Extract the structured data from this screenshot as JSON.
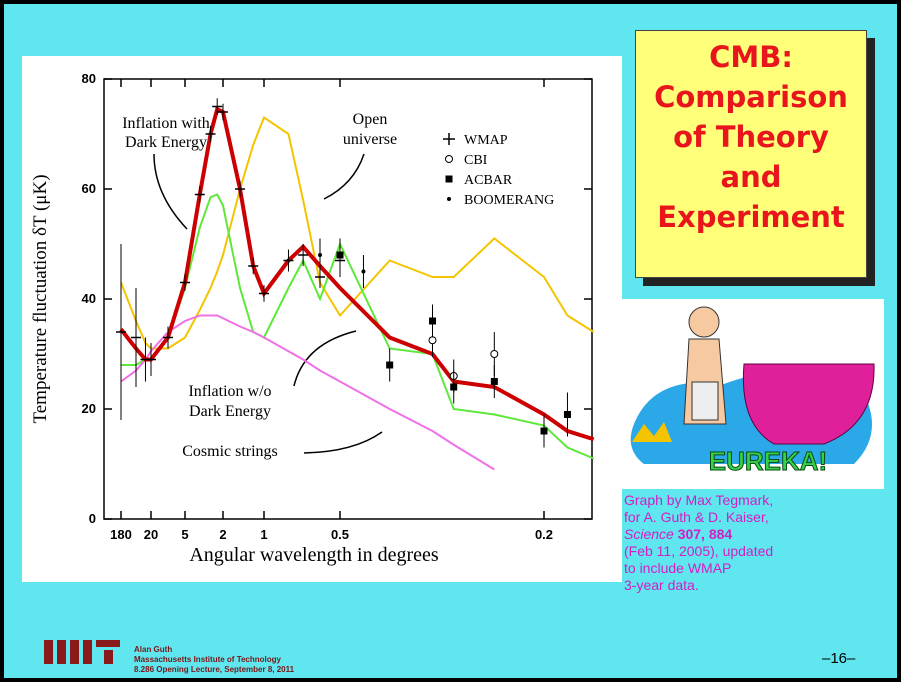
{
  "slide_title": [
    "CMB:",
    "Comparison",
    "of Theory",
    "and",
    "Experiment"
  ],
  "image": {
    "label": "EUREKA!"
  },
  "caption": {
    "line1": "Graph by Max Tegmark,",
    "line2": "for A. Guth & D. Kaiser,",
    "journal": "Science",
    "volume": "307, 884",
    "line4": "(Feb 11, 2005), updated",
    "line5": "to include WMAP",
    "line6": "3-year data."
  },
  "footer": {
    "name": "Alan Guth",
    "institution": "Massachusetts Institute of Technology",
    "lecture": "8.286 Opening Lecture, September 8, 2011",
    "page": "–16–"
  },
  "chart_data": {
    "type": "line",
    "x_label": "Angular wavelength in degrees",
    "y_label": "Temperature fluctuation δT (μK)",
    "x": [
      180,
      60,
      30,
      20,
      10,
      5,
      3.5,
      2.7,
      2.3,
      2,
      1.5,
      1.2,
      1,
      0.8,
      0.7,
      0.6,
      0.5,
      0.4,
      0.33,
      0.3,
      0.25,
      0.2,
      0.18,
      0.16
    ],
    "series": [
      {
        "name": "Open universe",
        "color": "#f5c400",
        "values": [
          43,
          36,
          32,
          31,
          31,
          33,
          38,
          42,
          45,
          48,
          60,
          68,
          73,
          70,
          58,
          43,
          37,
          47,
          44,
          44,
          51,
          44,
          37,
          34
        ]
      },
      {
        "name": "Inflation w/o Dark Energy",
        "color": "#5ee83a",
        "values": [
          28,
          28,
          29,
          29,
          33,
          42,
          53,
          58.5,
          59,
          57,
          42,
          34,
          33,
          42,
          47,
          40,
          50,
          31,
          30,
          20,
          19,
          17,
          13,
          11
        ]
      },
      {
        "name": "Cosmic strings",
        "color": "#f070e8",
        "values": [
          25,
          27,
          29,
          30.5,
          34,
          36,
          37,
          37,
          37,
          36.5,
          35,
          34,
          33,
          30.5,
          29,
          27,
          25,
          20,
          16,
          13.5,
          9,
          null,
          null,
          null
        ]
      },
      {
        "name": "Inflation with Dark Energy",
        "color": "#cc0000",
        "values": [
          34.5,
          31,
          29,
          29,
          33,
          43,
          59,
          70,
          74.5,
          74,
          60,
          46,
          41,
          47,
          49.5,
          46,
          42,
          33,
          30,
          25,
          24,
          19,
          16,
          14.5
        ]
      }
    ],
    "points": [
      {
        "name": "WMAP",
        "marker": "plus",
        "x": [
          180,
          60,
          30,
          20,
          10,
          5,
          3.5,
          2.7,
          2.3,
          2,
          1.5,
          1.2,
          1,
          0.8,
          0.7,
          0.6,
          0.5
        ],
        "values": [
          34,
          33,
          29,
          29,
          33,
          43,
          59,
          70,
          75,
          74,
          60,
          46,
          41,
          47,
          48,
          44,
          47
        ],
        "errors": [
          16,
          9,
          4,
          3,
          2,
          1.5,
          1.5,
          1.5,
          1.5,
          1.5,
          1.5,
          1.5,
          1.5,
          2,
          2,
          2,
          3
        ]
      },
      {
        "name": "CBI",
        "marker": "circle",
        "x": [
          0.33,
          0.3,
          0.25
        ],
        "values": [
          32.5,
          26,
          30
        ],
        "errors": [
          3,
          3,
          4
        ]
      },
      {
        "name": "ACBAR",
        "marker": "square",
        "x": [
          0.5,
          0.4,
          0.33,
          0.3,
          0.25,
          0.2,
          0.18
        ],
        "values": [
          48,
          28,
          36,
          24,
          25,
          16,
          19
        ],
        "errors": [
          3,
          3,
          3,
          3,
          3,
          3,
          4
        ]
      },
      {
        "name": "BOOMERANG",
        "marker": "dot",
        "x": [
          0.6,
          0.45
        ],
        "values": [
          48,
          45
        ],
        "errors": [
          3,
          3
        ]
      }
    ],
    "annotations": {
      "dark_energy": [
        "Inflation with",
        "Dark Energy"
      ],
      "open": [
        "Open",
        "universe"
      ],
      "no_dark_energy": [
        "Inflation w/o",
        "Dark Energy"
      ],
      "strings": [
        "Cosmic strings"
      ]
    },
    "xlim": [
      180,
      0.16
    ],
    "xticks": [
      180,
      20,
      5,
      2,
      1,
      0.5,
      0.2
    ],
    "ylim": [
      0,
      80
    ],
    "yticks": [
      0,
      20,
      40,
      60,
      80
    ]
  }
}
